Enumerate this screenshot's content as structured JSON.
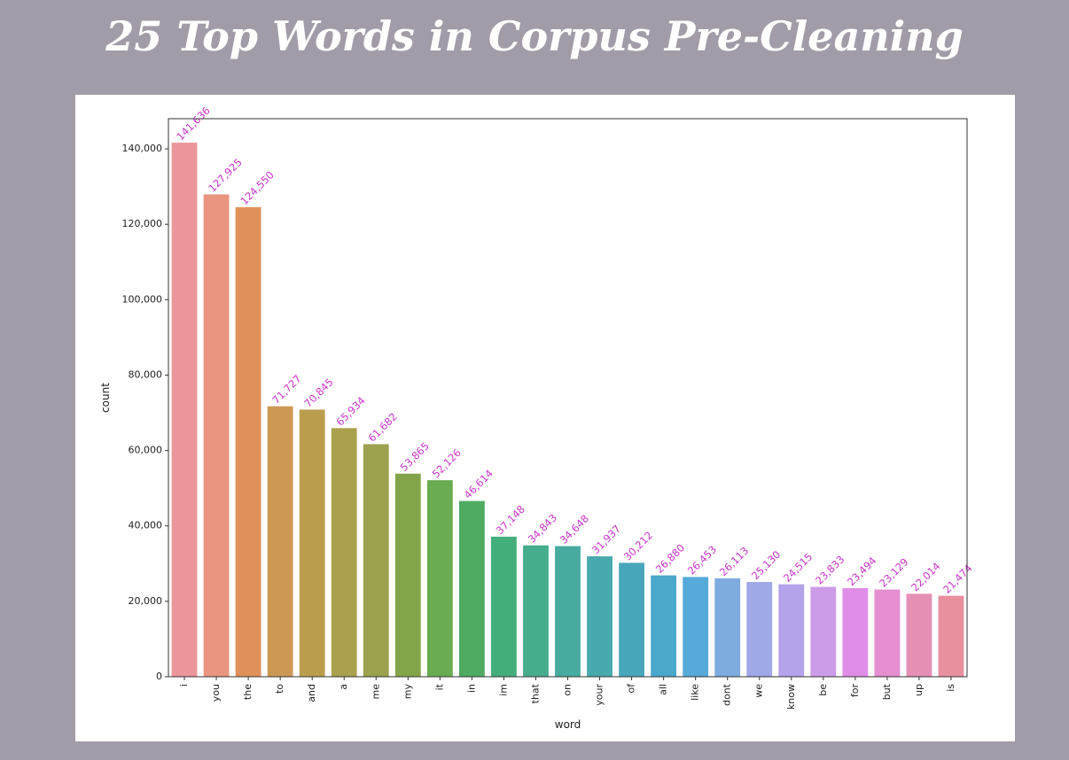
{
  "slide": {
    "title": "25 Top Words in Corpus Pre-Cleaning"
  },
  "chart_data": {
    "type": "bar",
    "title": "25 Top Words in Corpus Pre-Cleaning",
    "xlabel": "word",
    "ylabel": "count",
    "ylim": [
      0,
      148000
    ],
    "yticks": [
      0,
      20000,
      40000,
      60000,
      80000,
      100000,
      120000,
      140000
    ],
    "ytick_labels": [
      "0",
      "20,000",
      "40,000",
      "60,000",
      "80,000",
      "100,000",
      "120,000",
      "140,000"
    ],
    "grid": false,
    "categories": [
      "i",
      "you",
      "the",
      "to",
      "and",
      "a",
      "me",
      "my",
      "it",
      "in",
      "im",
      "that",
      "on",
      "your",
      "of",
      "all",
      "like",
      "dont",
      "we",
      "know",
      "be",
      "for",
      "but",
      "up",
      "is"
    ],
    "values": [
      141636,
      127925,
      124550,
      71727,
      70845,
      65934,
      61682,
      53865,
      52126,
      46614,
      37148,
      34843,
      34648,
      31937,
      30212,
      26880,
      26453,
      26113,
      25130,
      24515,
      23833,
      23494,
      23129,
      22014,
      21474
    ],
    "value_labels": [
      "141,636",
      "127,925",
      "124,550",
      "71,727",
      "70,845",
      "65,934",
      "61,682",
      "53,865",
      "52,126",
      "46,614",
      "37,148",
      "34,843",
      "34,648",
      "31,937",
      "30,212",
      "26,880",
      "26,453",
      "26,113",
      "25,130",
      "24,515",
      "23,833",
      "23,494",
      "23,129",
      "22,014",
      "21,474"
    ],
    "colors": [
      "#ea969b",
      "#e9957f",
      "#e0915b",
      "#cc9955",
      "#bb9d4e",
      "#aba04d",
      "#9ca24d",
      "#84a44a",
      "#6aac52",
      "#4fab62",
      "#44ae7b",
      "#46ac8e",
      "#47aba0",
      "#48a9ae",
      "#48a7bb",
      "#4aa8cb",
      "#56aad9",
      "#7eacde",
      "#a1a8e8",
      "#b4a2ea",
      "#cd9ce9",
      "#e08de8",
      "#e58ed1",
      "#e690b6",
      "#e9909f"
    ],
    "label_color": "#c834c8"
  }
}
